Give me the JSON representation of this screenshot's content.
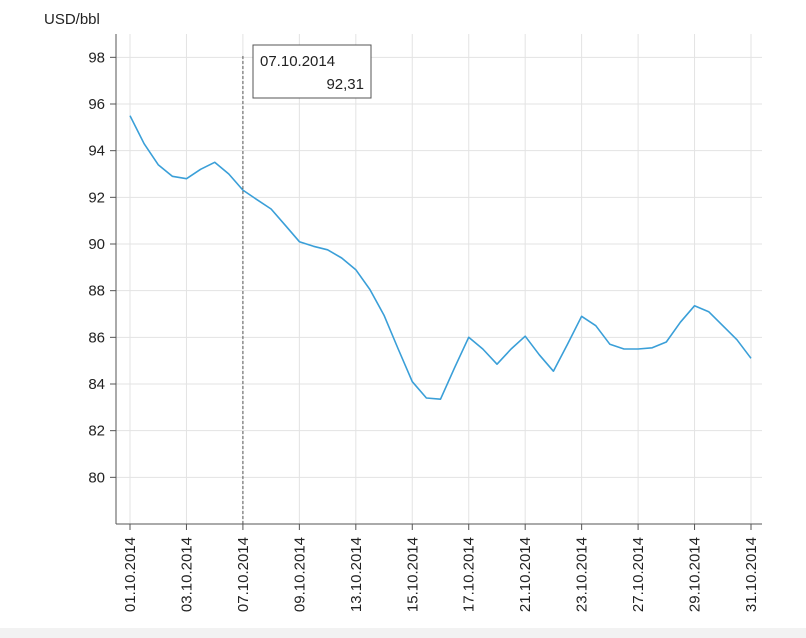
{
  "chart_data": {
    "type": "line",
    "unit_label": "USD/bbl",
    "ylim": [
      78,
      99
    ],
    "y_ticks": [
      80,
      82,
      84,
      86,
      88,
      90,
      92,
      94,
      96,
      98
    ],
    "y_tick_labels": [
      "80",
      "82",
      "84",
      "86",
      "88",
      "90",
      "92",
      "94",
      "96",
      "98"
    ],
    "x_tick_labels": [
      "01.10.2014",
      "03.10.2014",
      "07.10.2014",
      "09.10.2014",
      "13.10.2014",
      "15.10.2014",
      "17.10.2014",
      "21.10.2014",
      "23.10.2014",
      "27.10.2014",
      "29.10.2014",
      "31.10.2014"
    ],
    "grid": true,
    "line_color": "#3a9fd8",
    "series": [
      {
        "values": [
          95.5,
          94.3,
          93.4,
          92.9,
          92.8,
          93.2,
          93.5,
          93.0,
          92.31,
          91.9,
          91.5,
          90.8,
          90.1,
          89.9,
          89.75,
          89.4,
          88.9,
          88.05,
          86.95,
          85.5,
          84.1,
          83.4,
          83.35,
          84.7,
          86.0,
          85.5,
          84.85,
          85.5,
          86.05,
          85.25,
          84.55,
          85.7,
          86.9,
          86.5,
          85.7,
          85.5,
          85.5,
          85.55,
          85.8,
          86.65,
          87.35,
          87.1,
          86.5,
          85.9,
          85.1
        ]
      }
    ],
    "tooltip": {
      "date": "07.10.2014",
      "value": "92,31",
      "point_index": 8
    }
  }
}
